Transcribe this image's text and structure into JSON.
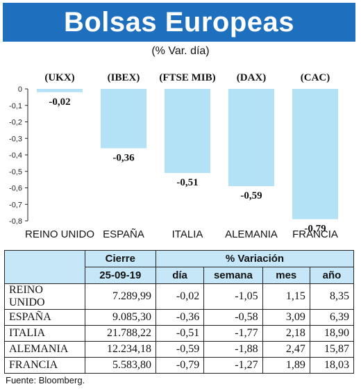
{
  "header": {
    "title": "Bolsas Europeas",
    "subtitle": "(% Var. día)"
  },
  "chart_data": {
    "type": "bar",
    "categories": [
      "REINO UNIDO",
      "ESPAÑA",
      "ITALIA",
      "ALEMANIA",
      "FRANCIA"
    ],
    "index_codes": [
      "(UKX)",
      "(IBEX)",
      "(FTSE MIB)",
      "(DAX)",
      "(CAC)"
    ],
    "values": [
      -0.02,
      -0.36,
      -0.51,
      -0.59,
      -0.79
    ],
    "value_labels": [
      "-0,02",
      "-0,36",
      "-0,51",
      "-0,59",
      "-0,79"
    ],
    "yticks": [
      0,
      -0.1,
      -0.2,
      -0.3,
      -0.4,
      -0.5,
      -0.6,
      -0.7,
      -0.8
    ],
    "ytick_labels": [
      "0",
      "-0,1",
      "-0,2",
      "-0,3",
      "-0,4",
      "-0,5",
      "-0,6",
      "-0,7",
      "-0,8"
    ],
    "ylim": [
      -0.8,
      0
    ],
    "bar_color": "#b3e2f7",
    "grid": false
  },
  "table": {
    "group_headers": {
      "cierre": "Cierre",
      "variacion": "% Variación"
    },
    "sub_headers": {
      "fecha": "25-09-19",
      "dia": "día",
      "semana": "semana",
      "mes": "mes",
      "anio": "año"
    },
    "rows": [
      {
        "name": "REINO UNIDO",
        "cierre": "7.289,99",
        "dia": "-0,02",
        "semana": "-1,05",
        "mes": "1,15",
        "anio": "8,35"
      },
      {
        "name": "ESPAÑA",
        "cierre": "9.085,30",
        "dia": "-0,36",
        "semana": "-0,58",
        "mes": "3,09",
        "anio": "6,39"
      },
      {
        "name": "ITALIA",
        "cierre": "21.788,22",
        "dia": "-0,51",
        "semana": "-1,77",
        "mes": "2,18",
        "anio": "18,90"
      },
      {
        "name": "ALEMANIA",
        "cierre": "12.234,18",
        "dia": "-0,59",
        "semana": "-1,88",
        "mes": "2,47",
        "anio": "15,87"
      },
      {
        "name": "FRANCIA",
        "cierre": "5.583,80",
        "dia": "-0,79",
        "semana": "-1,27",
        "mes": "1,89",
        "anio": "18,03"
      }
    ]
  },
  "source": "Fuente: Bloomberg.",
  "colors": {
    "banner": "#1f6fbf",
    "header_fill": "#c5e7f7",
    "bar": "#b3e2f7"
  }
}
